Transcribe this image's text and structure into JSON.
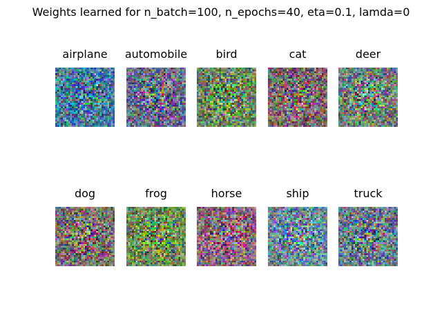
{
  "figure": {
    "title": "Weights learned for n_batch=100, n_epochs=40, eta=0.1, lamda=0"
  },
  "panels": [
    {
      "label": "airplane",
      "tint": "#4a7f9a"
    },
    {
      "label": "automobile",
      "tint": "#6a6f8a"
    },
    {
      "label": "bird",
      "tint": "#6f8a5e"
    },
    {
      "label": "cat",
      "tint": "#7a6a6a"
    },
    {
      "label": "deer",
      "tint": "#6f7f7a"
    },
    {
      "label": "dog",
      "tint": "#7a6f70"
    },
    {
      "label": "frog",
      "tint": "#6f8a55"
    },
    {
      "label": "horse",
      "tint": "#8a6a7a"
    },
    {
      "label": "ship",
      "tint": "#6f8a9a"
    },
    {
      "label": "truck",
      "tint": "#6a7a8a"
    }
  ]
}
